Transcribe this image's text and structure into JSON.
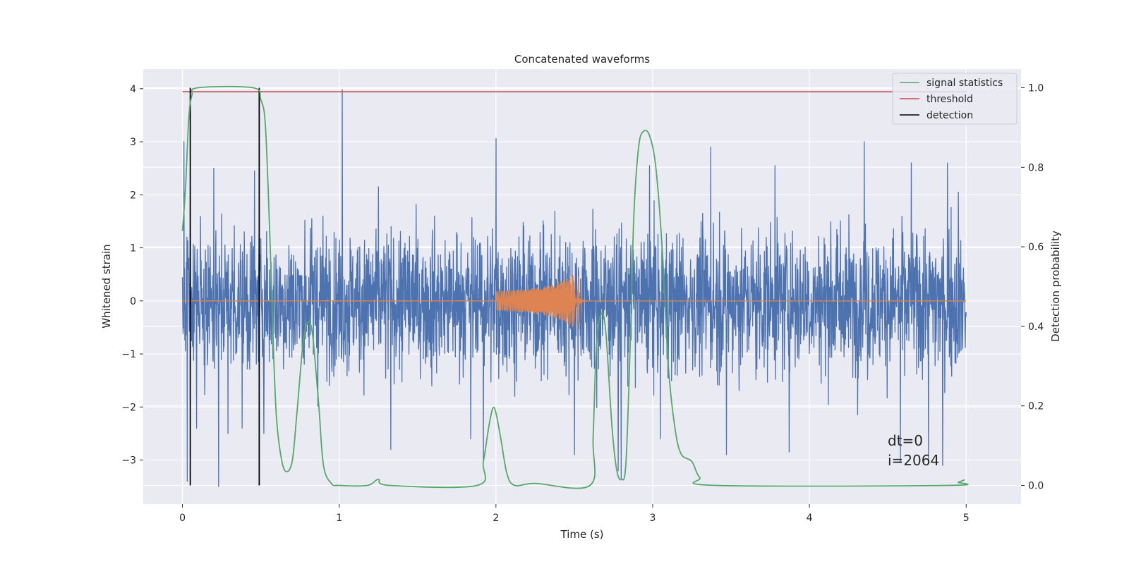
{
  "chart_data": {
    "type": "line",
    "title": "Concatenated waveforms",
    "xlabel": "Time (s)",
    "ylabel": "Whitened strain",
    "ylabel_right": "Detection probability",
    "xlim": [
      -0.25,
      5.35
    ],
    "ylim": [
      -3.83,
      4.37
    ],
    "ylim_right": [
      -0.047,
      1.047
    ],
    "xticks": [
      0,
      1,
      2,
      3,
      4,
      5
    ],
    "yticks": [
      -3,
      -2,
      -1,
      0,
      1,
      2,
      3,
      4
    ],
    "yticks_right": [
      0.0,
      0.2,
      0.4,
      0.6,
      0.8,
      1.0
    ],
    "grid": true,
    "legend_position": "top-right",
    "legend": [
      "signal statistics",
      "threshold",
      "detection"
    ],
    "colors": {
      "background": "#eaeaf2",
      "noise": "#4c72b0",
      "injection": "#dd8452",
      "statistics": "#55a868",
      "threshold": "#c44e52",
      "detection": "#000000",
      "grid": "#ffffff"
    },
    "series": [
      {
        "axis": "left",
        "style": "whitened noise strain, 0 to 5 s, roughly gaussian with amplitude about 1, peaks reaching about 4",
        "x_range": [
          0,
          5
        ],
        "spikes": [
          [
            0.01,
            3.0
          ],
          [
            0.03,
            -3.4
          ],
          [
            0.05,
            2.6
          ],
          [
            0.09,
            -2.4
          ],
          [
            0.2,
            2.5
          ],
          [
            0.23,
            -3.5
          ],
          [
            0.29,
            -2.5
          ],
          [
            0.38,
            -2.4
          ],
          [
            0.46,
            2.45
          ],
          [
            0.52,
            -2.5
          ],
          [
            1.02,
            3.98
          ],
          [
            1.25,
            2.15
          ],
          [
            1.33,
            -2.8
          ],
          [
            1.84,
            -2.6
          ],
          [
            1.92,
            -3.0
          ],
          [
            2.0,
            3.06
          ],
          [
            2.5,
            -2.9
          ],
          [
            2.78,
            -3.2
          ],
          [
            2.8,
            -3.35
          ],
          [
            2.98,
            2.55
          ],
          [
            3.05,
            -2.6
          ],
          [
            3.37,
            2.9
          ],
          [
            3.47,
            -2.9
          ],
          [
            3.78,
            2.55
          ],
          [
            3.87,
            -2.85
          ],
          [
            4.35,
            3.0
          ],
          [
            4.58,
            -3.05
          ],
          [
            4.65,
            2.6
          ],
          [
            4.76,
            -3.05
          ],
          [
            4.85,
            -3.1
          ],
          [
            4.88,
            2.6
          ],
          [
            4.95,
            2.05
          ]
        ]
      },
      {
        "axis": "left",
        "style": "injected chirp, 2.0 s to 2.53 s, amplitude growing from about 0.18 to about 0.65",
        "x_range": [
          2.0,
          2.6
        ],
        "envelope": [
          [
            2.0,
            0.18
          ],
          [
            2.2,
            0.22
          ],
          [
            2.35,
            0.3
          ],
          [
            2.45,
            0.42
          ],
          [
            2.51,
            0.55
          ],
          [
            2.53,
            0.65
          ]
        ]
      },
      {
        "name": "signal statistics",
        "axis": "right",
        "points": [
          [
            0.0,
            0.64
          ],
          [
            0.02,
            0.75
          ],
          [
            0.04,
            0.92
          ],
          [
            0.06,
            0.98
          ],
          [
            0.1,
            1.0
          ],
          [
            0.45,
            1.0
          ],
          [
            0.5,
            0.97
          ],
          [
            0.53,
            0.9
          ],
          [
            0.56,
            0.6
          ],
          [
            0.58,
            0.35
          ],
          [
            0.6,
            0.17
          ],
          [
            0.63,
            0.07
          ],
          [
            0.66,
            0.035
          ],
          [
            0.7,
            0.06
          ],
          [
            0.73,
            0.18
          ],
          [
            0.77,
            0.36
          ],
          [
            0.8,
            0.41
          ],
          [
            0.83,
            0.38
          ],
          [
            0.87,
            0.2
          ],
          [
            0.9,
            0.05
          ],
          [
            0.95,
            0.005
          ],
          [
            1.0,
            0.0
          ],
          [
            1.18,
            0.0
          ],
          [
            1.25,
            0.015
          ],
          [
            1.32,
            0.0
          ],
          [
            1.88,
            0.0
          ],
          [
            1.92,
            0.06
          ],
          [
            1.96,
            0.16
          ],
          [
            1.99,
            0.195
          ],
          [
            2.03,
            0.12
          ],
          [
            2.07,
            0.03
          ],
          [
            2.12,
            0.0
          ],
          [
            2.25,
            0.005
          ],
          [
            2.6,
            0.0
          ],
          [
            2.62,
            0.12
          ],
          [
            2.64,
            0.34
          ],
          [
            2.67,
            0.43
          ],
          [
            2.7,
            0.39
          ],
          [
            2.74,
            0.15
          ],
          [
            2.77,
            0.04
          ],
          [
            2.8,
            0.015
          ],
          [
            2.83,
            0.06
          ],
          [
            2.86,
            0.4
          ],
          [
            2.88,
            0.68
          ],
          [
            2.91,
            0.85
          ],
          [
            2.94,
            0.89
          ],
          [
            2.98,
            0.88
          ],
          [
            3.02,
            0.8
          ],
          [
            3.06,
            0.6
          ],
          [
            3.1,
            0.3
          ],
          [
            3.14,
            0.15
          ],
          [
            3.18,
            0.08
          ],
          [
            3.25,
            0.06
          ],
          [
            3.3,
            0.02
          ],
          [
            3.4,
            0.0
          ],
          [
            4.88,
            0.0
          ],
          [
            4.95,
            0.008
          ],
          [
            4.99,
            0.014
          ]
        ]
      },
      {
        "name": "threshold",
        "axis": "right",
        "constant": 0.99,
        "x_range": [
          0,
          5
        ]
      },
      {
        "name": "detection",
        "axis": "right",
        "vlines": [
          0.05,
          0.49
        ],
        "y_range": [
          0.0,
          1.0
        ]
      }
    ],
    "annotations": [
      "dt=0",
      "i=2064"
    ],
    "annotation_position": [
      4.5,
      0.1
    ]
  }
}
